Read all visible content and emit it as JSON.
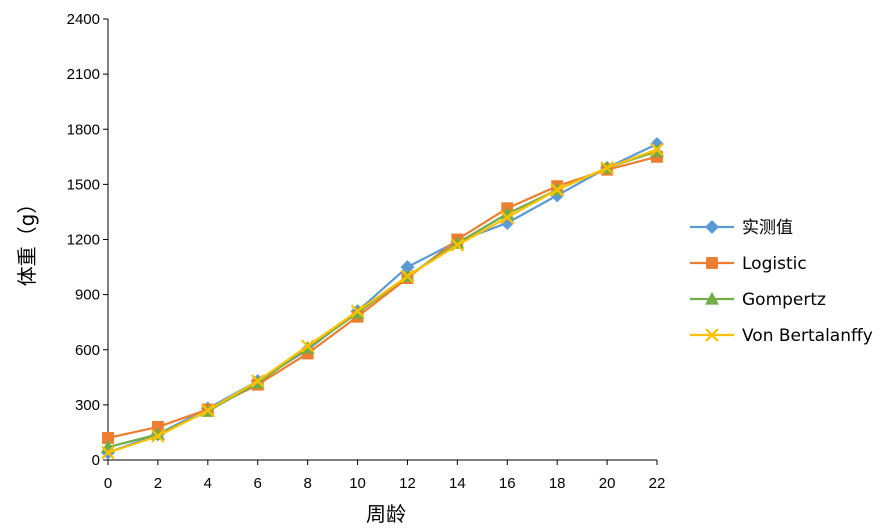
{
  "chart_data": {
    "type": "line",
    "title": "",
    "xlabel": "周龄",
    "ylabel": "体重（g）",
    "x": [
      0,
      2,
      4,
      6,
      8,
      10,
      12,
      14,
      16,
      18,
      20,
      22
    ],
    "xlim": [
      0,
      22
    ],
    "ylim": [
      0,
      2400
    ],
    "x_ticks": [
      0,
      2,
      4,
      6,
      8,
      10,
      12,
      14,
      16,
      18,
      20,
      22
    ],
    "y_ticks": [
      0,
      300,
      600,
      900,
      1200,
      1500,
      1800,
      2100,
      2400
    ],
    "grid": false,
    "legend_position": "right",
    "series": [
      {
        "name": "实测值",
        "color": "#5B9BD5",
        "marker": "diamond",
        "values": [
          40,
          140,
          280,
          430,
          600,
          810,
          1050,
          1190,
          1290,
          1440,
          1590,
          1720
        ]
      },
      {
        "name": "Logistic",
        "color": "#ED7D31",
        "marker": "square",
        "values": [
          120,
          180,
          275,
          410,
          580,
          780,
          990,
          1200,
          1370,
          1490,
          1580,
          1650
        ]
      },
      {
        "name": "Gompertz",
        "color": "#70AD47",
        "marker": "triangle",
        "values": [
          70,
          140,
          265,
          420,
          610,
          800,
          1000,
          1180,
          1340,
          1470,
          1590,
          1680
        ]
      },
      {
        "name": "Von Bertalanffy",
        "color": "#FFC000",
        "marker": "x",
        "values": [
          40,
          130,
          270,
          430,
          620,
          810,
          1000,
          1170,
          1320,
          1470,
          1590,
          1690
        ]
      }
    ]
  }
}
